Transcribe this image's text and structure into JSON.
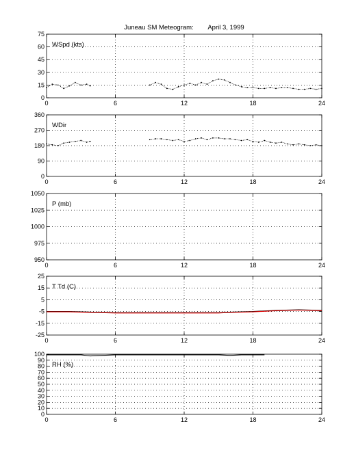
{
  "figure": {
    "title": "Juneau SM Meteogram:",
    "date": "April  3, 1999"
  },
  "chart_data": [
    {
      "type": "scatter",
      "panel_label": "WSpd (kts)",
      "xlim": [
        0,
        24
      ],
      "ylim": [
        0,
        75
      ],
      "xticks": [
        0,
        6,
        12,
        18,
        24
      ],
      "yticks": [
        0,
        15,
        30,
        45,
        60,
        75
      ],
      "grid": true,
      "series": [
        {
          "color": "#000000",
          "segments": [
            {
              "x": [
                0.0,
                0.5,
                1.0,
                1.5,
                2.0,
                2.5,
                3.0,
                3.5,
                3.8
              ],
              "y": [
                12,
                16,
                15,
                11,
                14,
                18,
                15,
                16,
                14
              ]
            },
            {
              "x": [
                9.0,
                9.5,
                10.0,
                10.5,
                11.0,
                11.5,
                12.0,
                12.5,
                13.0,
                13.5,
                14.0,
                14.5,
                15.0,
                15.5,
                16.0,
                16.5,
                17.0,
                17.5,
                18.0,
                18.5,
                19.0,
                19.5,
                20.0,
                20.5,
                21.0,
                21.5,
                22.0,
                22.5,
                23.0,
                23.5,
                24.0
              ],
              "y": [
                15,
                18,
                16,
                11,
                10,
                13,
                15,
                17,
                15,
                18,
                16,
                20,
                22,
                21,
                18,
                15,
                13,
                12,
                12,
                11,
                11,
                12,
                11,
                12,
                12,
                11,
                10,
                10,
                11,
                10,
                11
              ]
            }
          ]
        }
      ]
    },
    {
      "type": "scatter",
      "panel_label": "WDir",
      "xlim": [
        0,
        24
      ],
      "ylim": [
        0,
        360
      ],
      "xticks": [
        0,
        6,
        12,
        18,
        24
      ],
      "yticks": [
        0,
        90,
        180,
        270,
        360
      ],
      "grid": true,
      "series": [
        {
          "color": "#000000",
          "segments": [
            {
              "x": [
                0.0,
                0.5,
                1.0,
                1.5,
                2.0,
                2.5,
                3.0,
                3.5,
                3.8
              ],
              "y": [
                190,
                185,
                180,
                195,
                200,
                205,
                210,
                200,
                205
              ]
            },
            {
              "x": [
                9.0,
                9.5,
                10.0,
                10.5,
                11.0,
                11.5,
                12.0,
                12.5,
                13.0,
                13.5,
                14.0,
                14.5,
                15.0,
                15.5,
                16.0,
                16.5,
                17.0,
                17.5,
                18.0,
                18.5,
                19.0,
                19.5,
                20.0,
                20.5,
                21.0,
                21.5,
                22.0,
                22.5,
                23.0,
                23.5,
                24.0
              ],
              "y": [
                215,
                220,
                220,
                215,
                210,
                215,
                205,
                210,
                220,
                225,
                215,
                225,
                225,
                220,
                220,
                215,
                210,
                215,
                205,
                200,
                210,
                200,
                195,
                200,
                190,
                185,
                190,
                185,
                180,
                185,
                180
              ]
            }
          ]
        }
      ]
    },
    {
      "type": "line",
      "panel_label": "P (mb)",
      "xlim": [
        0,
        24
      ],
      "ylim": [
        950,
        1050
      ],
      "xticks": [
        0,
        6,
        12,
        18,
        24
      ],
      "yticks": [
        950,
        975,
        1000,
        1025,
        1050
      ],
      "grid": true,
      "series": []
    },
    {
      "type": "line",
      "panel_label": "T Td (C)",
      "xlim": [
        0,
        24
      ],
      "ylim": [
        -25,
        25
      ],
      "xticks": [
        0,
        6,
        12,
        18,
        24
      ],
      "yticks": [
        -25,
        -15,
        -5,
        5,
        15,
        25
      ],
      "grid": true,
      "series": [
        {
          "color": "#000000",
          "segments": [
            {
              "x": [
                0,
                2,
                4,
                6,
                8,
                10,
                12,
                14,
                15,
                16,
                18,
                20,
                22,
                24
              ],
              "y": [
                -5,
                -5,
                -5.5,
                -6,
                -6,
                -6,
                -6,
                -6,
                -6,
                -5.5,
                -5,
                -4,
                -3.5,
                -4
              ]
            }
          ]
        },
        {
          "color": "#dd0000",
          "segments": [
            {
              "x": [
                0,
                2,
                4,
                6,
                8,
                10,
                12,
                14,
                15,
                16,
                18,
                20,
                22,
                24
              ],
              "y": [
                -5.3,
                -5.3,
                -5.8,
                -6.3,
                -6.3,
                -6.3,
                -6.3,
                -6.3,
                -6.3,
                -5.8,
                -5.3,
                -4.3,
                -3.8,
                -4.3
              ]
            }
          ]
        }
      ]
    },
    {
      "type": "line",
      "panel_label": "RH (%)",
      "xlim": [
        0,
        24
      ],
      "ylim": [
        0,
        100
      ],
      "xticks": [
        0,
        6,
        12,
        18,
        24
      ],
      "yticks": [
        0,
        10,
        20,
        30,
        40,
        50,
        60,
        70,
        80,
        90,
        100
      ],
      "grid": true,
      "series": [
        {
          "color": "#000000",
          "segments": [
            {
              "x": [
                0,
                3,
                3.8,
                6,
                9,
                12,
                15,
                16,
                17,
                19
              ],
              "y": [
                99,
                99,
                97,
                99,
                99,
                99,
                99,
                98,
                99,
                99
              ]
            }
          ]
        }
      ]
    }
  ]
}
